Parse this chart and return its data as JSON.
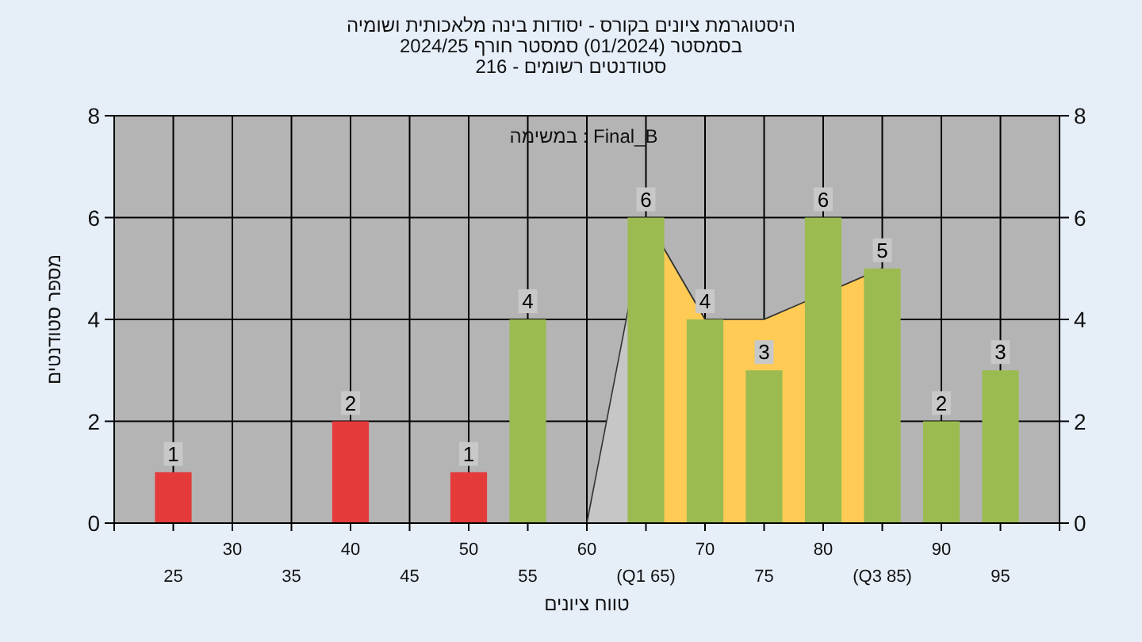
{
  "chart_data": {
    "type": "bar",
    "title": "היסטוגרמת ציונים בקורס - יסודות בינה מלאכותית ושומיה",
    "subtitle": "בסמסטר  (01/2024)  סמסטר חורף 2024/25",
    "annotations": [
      "סטודנטים רשומים - 216",
      "במשימה : Final_B"
    ],
    "xlabel": "טווח ציונים",
    "ylabel": "מספר סטודנטים",
    "categories": [
      "25",
      "30",
      "35",
      "40",
      "45",
      "50",
      "55",
      "60",
      "(Q1 65)",
      "70",
      "75",
      "80",
      "(Q3 85)",
      "90",
      "95"
    ],
    "series": [
      {
        "type": "area",
        "color": "#c6c6c6",
        "values": [
          null,
          null,
          null,
          null,
          null,
          null,
          null,
          0,
          6,
          4,
          4,
          null,
          5,
          null,
          null
        ]
      },
      {
        "type": "area",
        "color": "#ffcb55",
        "values": [
          null,
          null,
          null,
          null,
          null,
          null,
          null,
          null,
          6,
          4,
          4,
          null,
          5,
          null,
          null
        ]
      },
      {
        "colors": [
          "#e53a3a",
          "#e53a3a",
          "#e53a3a",
          "#e53a3a",
          "#e53a3a",
          "#e53a3a",
          "#9bbb50",
          "#9bbb50",
          "#9bbb50",
          "#9bbb50",
          "#9bbb50",
          "#9bbb50",
          "#9bbb50",
          "#9bbb50",
          "#9bbb50"
        ],
        "values": [
          1,
          0,
          0,
          2,
          0,
          1,
          4,
          0,
          6,
          4,
          3,
          6,
          5,
          2,
          3
        ],
        "value_labels": [
          "1",
          null,
          null,
          "2",
          null,
          "1",
          "4",
          null,
          "6",
          "4",
          "3",
          "6",
          "5",
          "2",
          "3"
        ]
      }
    ],
    "ylim": [
      0,
      8
    ],
    "yticks": [
      0,
      2,
      4,
      6,
      8
    ],
    "y2lim": [
      0,
      8
    ],
    "y2ticks": [
      0,
      2,
      4,
      6,
      8
    ],
    "grid": true
  }
}
